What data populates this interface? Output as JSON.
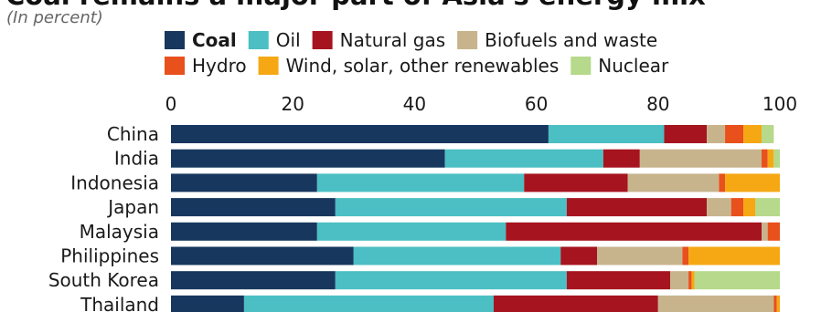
{
  "chart_data": {
    "type": "bar",
    "orientation": "horizontal",
    "stacked": true,
    "title": "Coal remains a major part of Asia's energy mix",
    "subtitle": "(In percent)",
    "xlim": [
      0,
      100
    ],
    "xticks": [
      0,
      20,
      40,
      60,
      80,
      100
    ],
    "xlabel": "",
    "ylabel": "",
    "grid": false,
    "legend_position": "top",
    "categories": [
      "China",
      "India",
      "Indonesia",
      "Japan",
      "Malaysia",
      "Philippines",
      "South Korea",
      "Thailand"
    ],
    "series": [
      {
        "name": "Coal",
        "color": "#17375e",
        "values": [
          62,
          45,
          24,
          27,
          24,
          30,
          27,
          12
        ]
      },
      {
        "name": "Oil",
        "color": "#4bbfc3",
        "values": [
          19,
          26,
          34,
          38,
          31,
          34,
          38,
          41
        ]
      },
      {
        "name": "Natural gas",
        "color": "#a6141f",
        "values": [
          7,
          6,
          17,
          23,
          42,
          6,
          17,
          27
        ]
      },
      {
        "name": "Biofuels and waste",
        "color": "#c8b48c",
        "values": [
          3,
          20,
          15,
          4,
          1,
          14,
          3,
          19
        ]
      },
      {
        "name": "Hydro",
        "color": "#e8501c",
        "values": [
          3,
          1,
          1,
          2,
          2,
          1,
          0.5,
          0.5
        ]
      },
      {
        "name": "Wind, solar, other renewables",
        "color": "#f5a814",
        "values": [
          3,
          1,
          9,
          2,
          0,
          15,
          0.5,
          0.5
        ]
      },
      {
        "name": "Nuclear",
        "color": "#b6d98b",
        "values": [
          2,
          1,
          0,
          4,
          0,
          0,
          14,
          0
        ]
      }
    ]
  }
}
